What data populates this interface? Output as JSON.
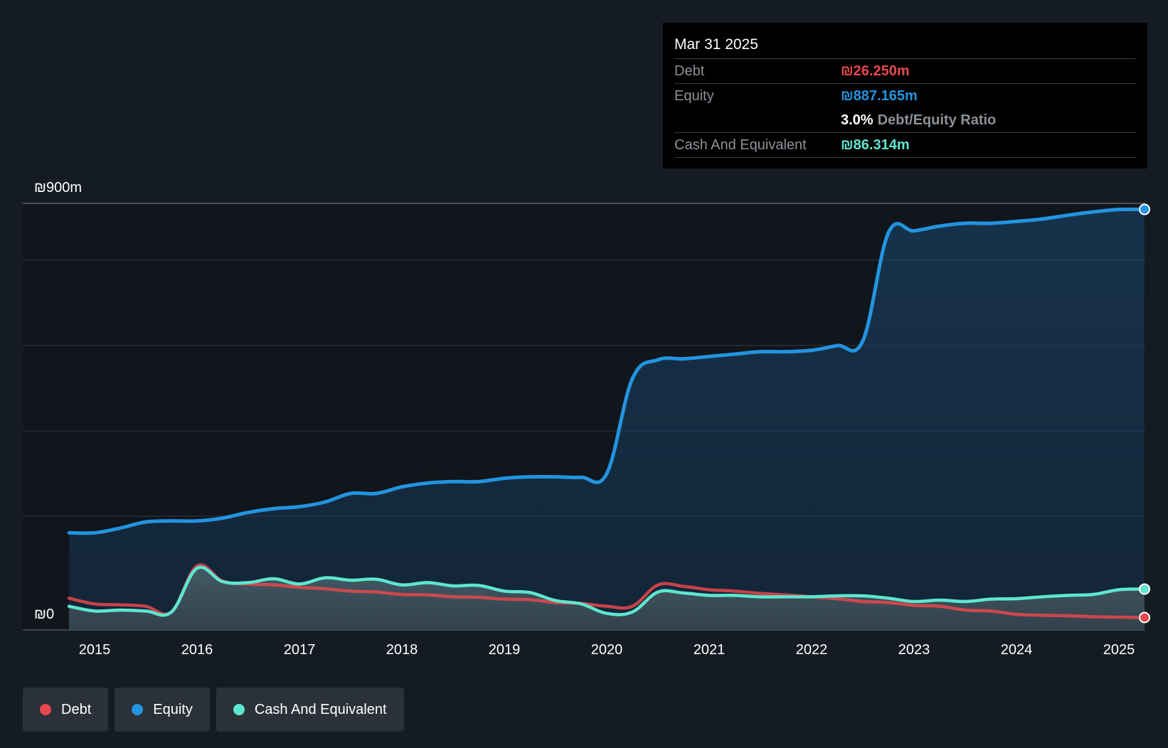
{
  "chart_data": {
    "type": "area",
    "title": "",
    "ylim": [
      0,
      900
    ],
    "y_tick_labels": [
      "₪900m",
      "₪0"
    ],
    "x_tick_labels": [
      "2015",
      "2016",
      "2017",
      "2018",
      "2019",
      "2020",
      "2021",
      "2022",
      "2023",
      "2024",
      "2025"
    ],
    "grid": true,
    "legend_placement": "bottom-left",
    "x": [
      2014.75,
      2015.0,
      2015.25,
      2015.5,
      2015.75,
      2016.0,
      2016.25,
      2016.5,
      2016.75,
      2017.0,
      2017.25,
      2017.5,
      2017.75,
      2018.0,
      2018.25,
      2018.5,
      2018.75,
      2019.0,
      2019.25,
      2019.5,
      2019.75,
      2020.0,
      2020.25,
      2020.5,
      2020.75,
      2021.0,
      2021.25,
      2021.5,
      2021.75,
      2022.0,
      2022.25,
      2022.5,
      2022.75,
      2023.0,
      2023.25,
      2023.5,
      2023.75,
      2024.0,
      2024.25,
      2024.5,
      2024.75,
      2025.0,
      2025.25
    ],
    "series": [
      {
        "name": "Debt",
        "color": "#e5484d",
        "values": [
          67,
          55,
          53,
          50,
          38,
          135,
          103,
          97,
          95,
          90,
          87,
          82,
          80,
          75,
          74,
          70,
          69,
          65,
          64,
          58,
          56,
          50,
          50,
          95,
          92,
          85,
          82,
          77,
          74,
          70,
          66,
          60,
          58,
          52,
          50,
          42,
          40,
          33,
          31,
          30,
          28,
          27,
          26.25
        ]
      },
      {
        "name": "Equity",
        "color": "#2394df",
        "values": [
          205,
          205,
          215,
          228,
          230,
          230,
          236,
          248,
          256,
          260,
          270,
          288,
          288,
          302,
          310,
          313,
          313,
          320,
          323,
          323,
          322,
          330,
          530,
          570,
          572,
          577,
          582,
          587,
          587,
          590,
          600,
          610,
          838,
          842,
          852,
          858,
          858,
          862,
          867,
          875,
          882,
          887,
          887.165
        ]
      },
      {
        "name": "Cash And Equivalent",
        "color": "#5ee6cf",
        "values": [
          50,
          40,
          42,
          40,
          38,
          130,
          102,
          100,
          108,
          97,
          110,
          105,
          107,
          95,
          100,
          93,
          94,
          82,
          79,
          62,
          55,
          35,
          38,
          80,
          78,
          73,
          73,
          70,
          70,
          70,
          72,
          72,
          67,
          60,
          63,
          60,
          65,
          66,
          70,
          73,
          75,
          85,
          86.314
        ]
      }
    ]
  },
  "tooltip": {
    "date": "Mar 31 2025",
    "debt_label": "Debt",
    "debt_value": "₪26.250m",
    "equity_label": "Equity",
    "equity_value": "₪887.165m",
    "ratio_value": "3.0%",
    "ratio_label": "Debt/Equity Ratio",
    "cash_label": "Cash And Equivalent",
    "cash_value": "₪86.314m"
  },
  "legend": {
    "items": [
      {
        "label": "Debt",
        "color": "#e5484d"
      },
      {
        "label": "Equity",
        "color": "#2394df"
      },
      {
        "label": "Cash And Equivalent",
        "color": "#5ee6cf"
      }
    ]
  }
}
